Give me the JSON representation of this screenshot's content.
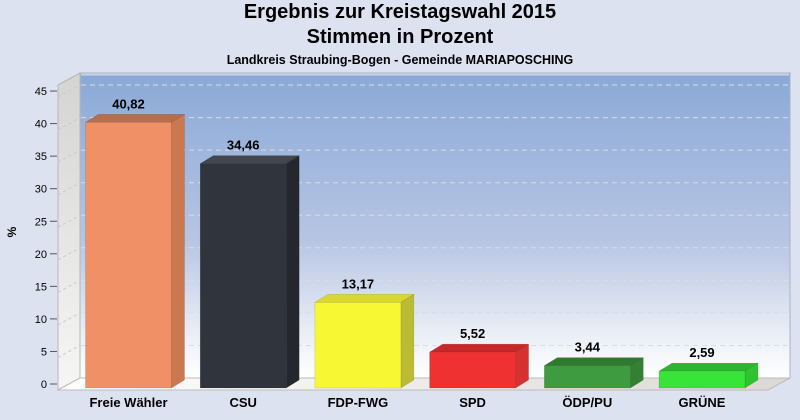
{
  "chart_data": {
    "type": "bar",
    "style": "3d-column",
    "title": "Ergebnis zur Kreistagswahl 2015",
    "subtitle": "Stimmen in Prozent",
    "note": "Landkreis Straubing-Bogen - Gemeinde MARIAPOSCHING",
    "categories": [
      "Freie Wähler",
      "CSU",
      "FDP-FWG",
      "SPD",
      "ÖDP/PU",
      "GRÜNE"
    ],
    "values": [
      40.82,
      34.46,
      13.17,
      5.52,
      3.44,
      2.59
    ],
    "value_labels": [
      "40,82",
      "34,46",
      "13,17",
      "5,52",
      "3,44",
      "2,59"
    ],
    "colors": [
      {
        "front": "#F09066",
        "top": "#B56F4E",
        "side": "#C97850"
      },
      {
        "front": "#30343C",
        "top": "#42464F",
        "side": "#24272E"
      },
      {
        "front": "#F7F733",
        "top": "#D8D830",
        "side": "#BCBC34"
      },
      {
        "front": "#F03131",
        "top": "#C62929",
        "side": "#D53131"
      },
      {
        "front": "#3F9B3F",
        "top": "#2E7A2E",
        "side": "#337F33"
      },
      {
        "front": "#38E438",
        "top": "#2EB52E",
        "side": "#2FC42F"
      }
    ],
    "xlabel": "",
    "ylabel": "%",
    "ylim": [
      0,
      45
    ],
    "ytick_step": 5,
    "ytick_labels": [
      "0",
      "5",
      "10",
      "15",
      "20",
      "25",
      "30",
      "35",
      "40",
      "45"
    ],
    "grid": "dashed",
    "legend": "none",
    "background": {
      "page": "#DDE2F1",
      "wall_top": "#8AA9D7",
      "wall_bottom": "#FFFFFF",
      "left_wall": "#D8D8D6",
      "floor": "#EDEBE8"
    }
  }
}
